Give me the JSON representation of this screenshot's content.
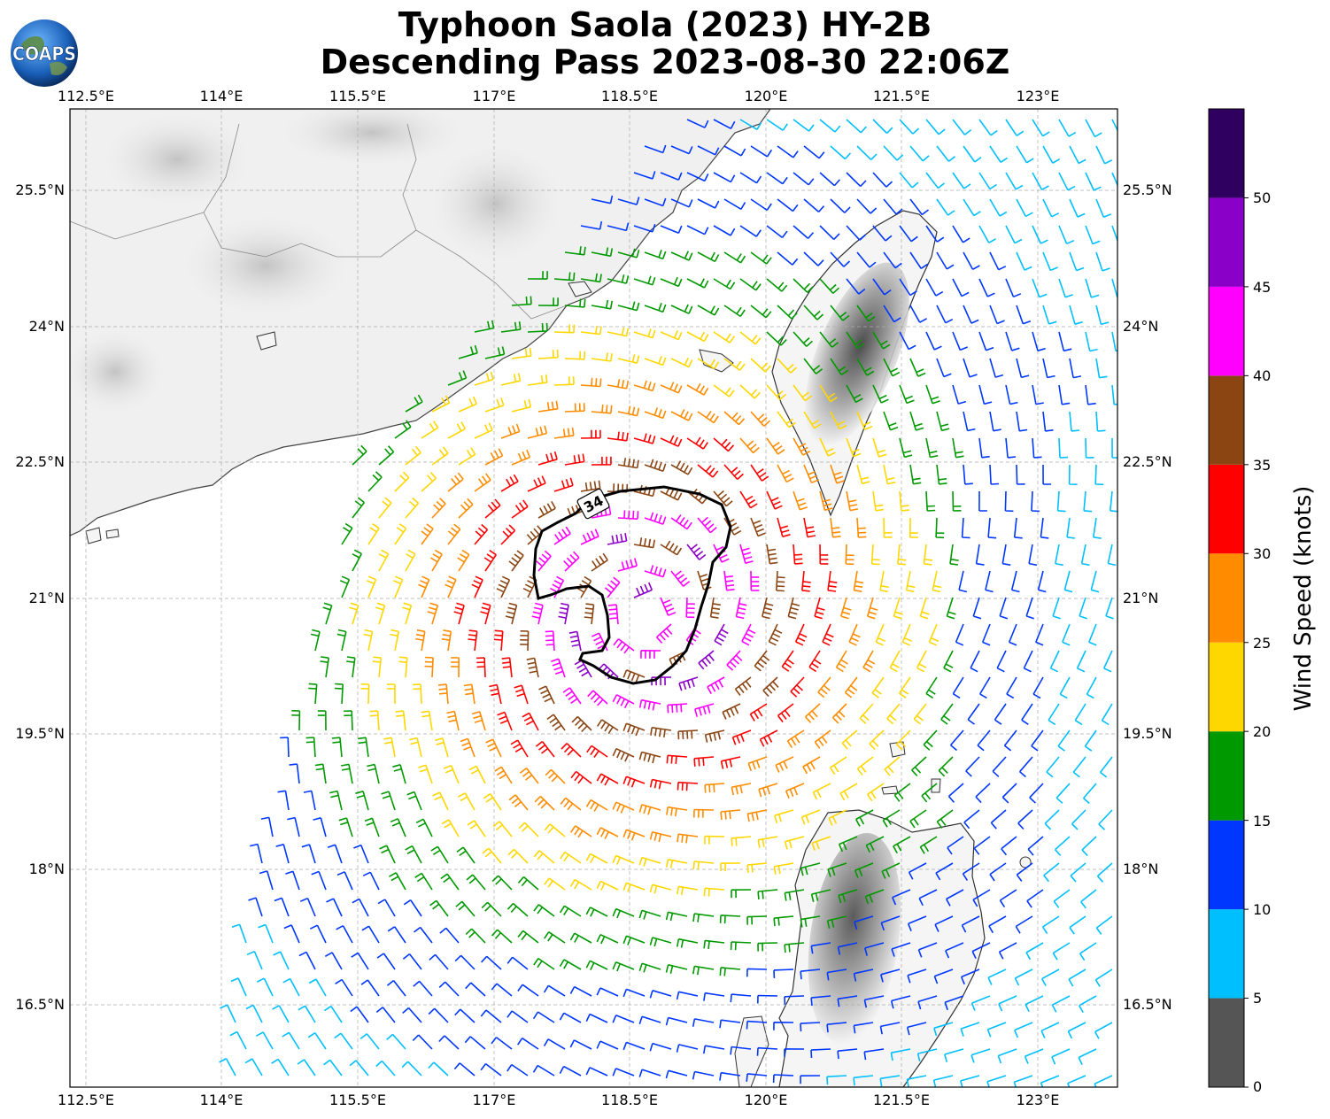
{
  "title": {
    "line1": "Typhoon Saola (2023) HY-2B",
    "line2": "Descending Pass 2023-08-30 22:06Z"
  },
  "logo": {
    "text": "COAPS"
  },
  "map": {
    "lon_labels": [
      "112.5°E",
      "114°E",
      "115.5°E",
      "117°E",
      "118.5°E",
      "120°E",
      "121.5°E",
      "123°E"
    ],
    "lat_labels": [
      "25.5°N",
      "24°N",
      "22.5°N",
      "21°N",
      "19.5°N",
      "18°N",
      "16.5°N"
    ],
    "lon_range": [
      112.3,
      123.9
    ],
    "lat_range": [
      15.9,
      26.4
    ],
    "contour_label": "34",
    "storm_center": {
      "lon": 118.55,
      "lat": 20.95
    }
  },
  "colorbar": {
    "title": "Wind Speed (knots)",
    "ticks": [
      "0",
      "5",
      "10",
      "15",
      "20",
      "25",
      "30",
      "35",
      "40",
      "45",
      "50"
    ],
    "bins": [
      {
        "from": 0,
        "to": 5,
        "color": "#555555"
      },
      {
        "from": 5,
        "to": 10,
        "color": "#00bfff"
      },
      {
        "from": 10,
        "to": 15,
        "color": "#0037ff"
      },
      {
        "from": 15,
        "to": 20,
        "color": "#009900"
      },
      {
        "from": 20,
        "to": 25,
        "color": "#ffd700"
      },
      {
        "from": 25,
        "to": 30,
        "color": "#ff8c00"
      },
      {
        "from": 30,
        "to": 35,
        "color": "#ff0000"
      },
      {
        "from": 35,
        "to": 40,
        "color": "#8b4513"
      },
      {
        "from": 40,
        "to": 45,
        "color": "#ff00ff"
      },
      {
        "from": 45,
        "to": 50,
        "color": "#8b00c8"
      },
      {
        "from": 50,
        "to": 55,
        "color": "#300060"
      }
    ]
  }
}
